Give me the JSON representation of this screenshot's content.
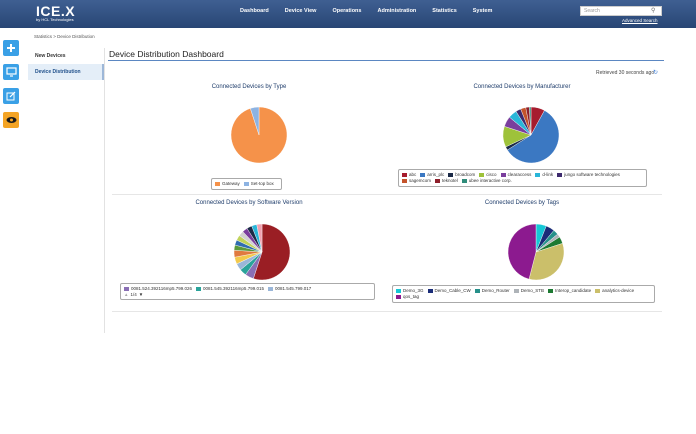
{
  "app": {
    "logo": "ICE.X",
    "logo_tagline": "by HCL Technologies"
  },
  "nav": {
    "items": [
      "Dashboard",
      "Device View",
      "Operations",
      "Administration",
      "Statistics",
      "System"
    ]
  },
  "search": {
    "placeholder": "Search",
    "advanced_link": "Advanced Search"
  },
  "breadcrumb": "Statistics > Device Distribution",
  "subnav": {
    "items": [
      "New Devices",
      "Device Distribution"
    ],
    "active": "Device Distribution"
  },
  "page": {
    "title": "Device Distribution Dashboard",
    "retrieved": "Retrieved 30 seconds ago"
  },
  "panels": [
    {
      "title": "Connected Devices by Type",
      "legend": [
        {
          "label": "Gateway",
          "color": "#f5924a"
        },
        {
          "label": "Set-top box",
          "color": "#8db3e2"
        }
      ],
      "slices": [
        0.95,
        0.05
      ]
    },
    {
      "title": "Connected Devices by Manufacturer",
      "legend": [
        {
          "label": "abc",
          "color": "#a61c2e"
        },
        {
          "label": "arris_plc",
          "color": "#3b78c2"
        },
        {
          "label": "broadcom",
          "color": "#1b2a47"
        },
        {
          "label": "cisco",
          "color": "#9ec23a"
        },
        {
          "label": "clearaccess",
          "color": "#7a3e9d"
        },
        {
          "label": "d-link",
          "color": "#29b6d9"
        },
        {
          "label": "jungo software technologies",
          "color": "#3d2a6e"
        },
        {
          "label": "sagemcom",
          "color": "#c4532b"
        },
        {
          "label": "teknotel",
          "color": "#8e1f2a"
        },
        {
          "label": "ubee interactive corp.",
          "color": "#2f8c7a"
        }
      ],
      "slices": [
        0.08,
        0.58,
        0.02,
        0.12,
        0.06,
        0.05,
        0.03,
        0.03,
        0.02,
        0.01
      ]
    },
    {
      "title": "Connected Devices by Software Version",
      "legend": [
        {
          "label": "0081.524.392116mp5.799.026",
          "color": "#8a6fb5"
        },
        {
          "label": "0081.545.392116mp5.799.015",
          "color": "#2aa39a"
        },
        {
          "label": "0081.545.799.017",
          "color": "#9ab6d8"
        }
      ],
      "pager": "1/4",
      "slices": [
        0.55,
        0.05,
        0.04,
        0.04,
        0.04,
        0.04,
        0.03,
        0.03,
        0.03,
        0.03,
        0.03,
        0.03,
        0.03,
        0.03
      ],
      "slice_colors": [
        "#9a1e24",
        "#8a6fb5",
        "#2aa39a",
        "#9ab6d8",
        "#f2c94c",
        "#e07a3f",
        "#5a9a3c",
        "#2f6db0",
        "#c0d35a",
        "#d1d1d1",
        "#7a3e9d",
        "#1b2a47",
        "#29b6d9",
        "#f0a0b0"
      ]
    },
    {
      "title": "Connected Devices by Tags",
      "legend": [
        {
          "label": "Demo_3G",
          "color": "#16c7d6"
        },
        {
          "label": "Demo_Cable_CW",
          "color": "#1a2c78"
        },
        {
          "label": "Demo_Router",
          "color": "#26908a"
        },
        {
          "label": "Demo_STB",
          "color": "#aeb3b8"
        },
        {
          "label": "Interop_candidate",
          "color": "#1d7a32"
        },
        {
          "label": "analytics-device",
          "color": "#cbbf6a"
        },
        {
          "label": "qos_tag",
          "color": "#8c1a8f"
        }
      ],
      "slices": [
        0.06,
        0.05,
        0.03,
        0.02,
        0.04,
        0.34,
        0.46
      ]
    }
  ]
}
